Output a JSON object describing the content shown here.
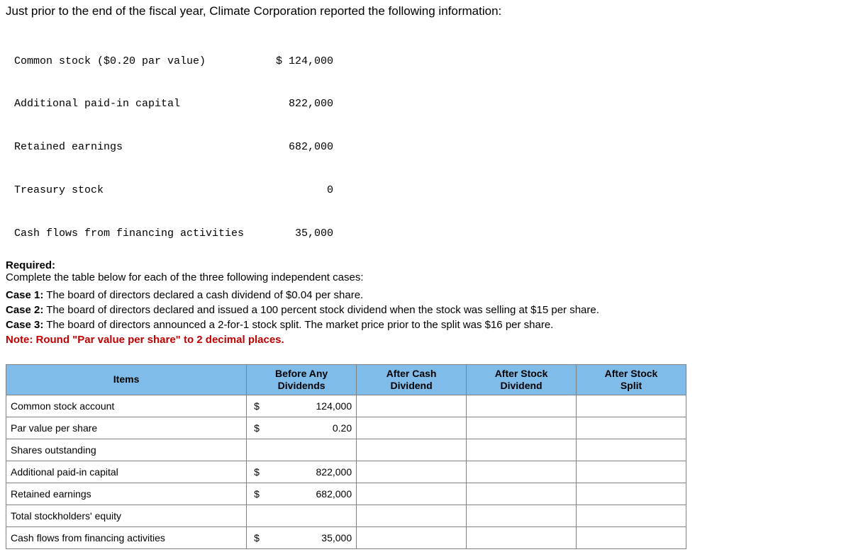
{
  "intro": "Just prior to the end of the fiscal year, Climate Corporation reported the following information:",
  "given": {
    "rows": [
      {
        "label": "Common stock ($0.20 par value)",
        "prefix": "$ ",
        "value": "124,000"
      },
      {
        "label": "Additional paid-in capital",
        "prefix": "  ",
        "value": "822,000"
      },
      {
        "label": "Retained earnings",
        "prefix": "  ",
        "value": "682,000"
      },
      {
        "label": "Treasury stock",
        "prefix": "  ",
        "value": "0"
      },
      {
        "label": "Cash flows from financing activities",
        "prefix": "  ",
        "value": "35,000"
      }
    ]
  },
  "required": {
    "heading": "Required:",
    "text": "Complete the table below for each of the three following independent cases:"
  },
  "cases": {
    "c1_label": "Case 1:",
    "c1_text": " The board of directors declared a cash dividend of $0.04 per share.",
    "c2_label": "Case 2:",
    "c2_text": " The board of directors declared and issued a 100 percent stock dividend when the stock was selling at $15 per share.",
    "c3_label": "Case 3:",
    "c3_text": " The board of directors announced a 2-for-1 stock split. The market price prior to the split was $16 per share.",
    "note": "Note: Round \"Par value per share\" to 2 decimal places."
  },
  "table": {
    "headers": {
      "items": "Items",
      "before_l1": "Before Any",
      "before_l2": "Dividends",
      "cash_l1": "After Cash",
      "cash_l2": "Dividend",
      "stockdiv_l1": "After Stock",
      "stockdiv_l2": "Dividend",
      "split_l1": "After Stock",
      "split_l2": "Split"
    },
    "rows": [
      {
        "label": "Common stock account",
        "before_cur": "$",
        "before_val": "124,000"
      },
      {
        "label": "Par value per share",
        "before_cur": "$",
        "before_val": "0.20"
      },
      {
        "label": "Shares outstanding",
        "before_cur": "",
        "before_val": ""
      },
      {
        "label": "Additional paid-in capital",
        "before_cur": "$",
        "before_val": "822,000"
      },
      {
        "label": "Retained earnings",
        "before_cur": "$",
        "before_val": "682,000"
      },
      {
        "label": "Total stockholders' equity",
        "before_cur": "",
        "before_val": ""
      },
      {
        "label": "Cash flows from financing activities",
        "before_cur": "$",
        "before_val": "35,000"
      }
    ]
  },
  "style": {
    "header_bg": "#7fbce9",
    "border_color": "#808080",
    "note_color": "#c00000",
    "body_fontsize": 15,
    "mono_font": "Courier New"
  }
}
